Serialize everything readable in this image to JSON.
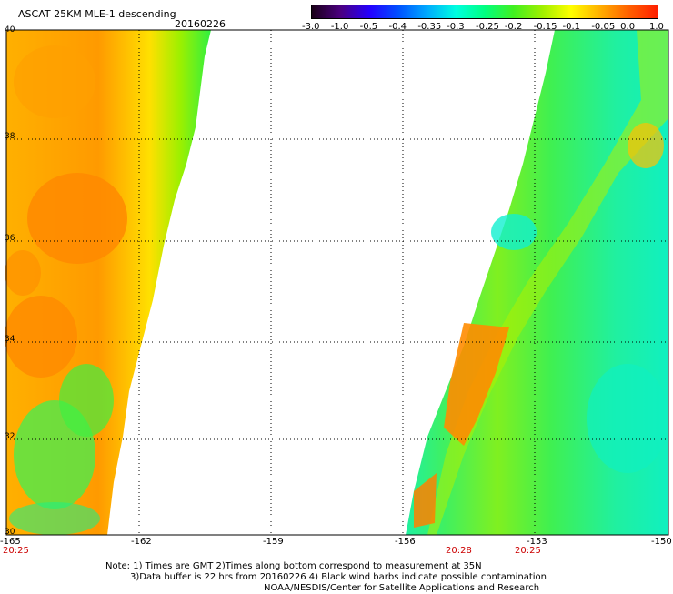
{
  "title": {
    "product": "ASCAT 25KM MLE-1 descending",
    "date": "20160226"
  },
  "colorbar": {
    "labels": [
      "-3.0",
      "-1.0",
      "-0.5",
      "-0.4",
      "-0.35",
      "-0.3",
      "-0.25",
      "-0.2",
      "-0.15",
      "-0.1",
      "-0.05",
      "0.0",
      "1.0"
    ],
    "colors": [
      "#1a0018",
      "#4b0080",
      "#2400ff",
      "#0050ff",
      "#00aaff",
      "#00ffe0",
      "#00ff80",
      "#40f020",
      "#a0f000",
      "#ffff00",
      "#ffb000",
      "#ff6000",
      "#ff2000"
    ]
  },
  "map": {
    "y_labels": [
      "40",
      "38",
      "36",
      "34",
      "32",
      "30"
    ],
    "x_labels": [
      "-165",
      "-162",
      "-159",
      "-156",
      "-153",
      "-150"
    ],
    "time_labels": [
      {
        "text": "20:25",
        "anchor_lon": "-165"
      },
      {
        "text": "20:28",
        "anchor_lon": "-155"
      },
      {
        "text": "20:25",
        "anchor_lon": "-153"
      }
    ]
  },
  "notes": [
    "Note: 1) Times are GMT 2)Times along bottom correspond to measurement at 35N",
    "3)Data buffer is 22 hrs from 20160226 4) Black wind barbs indicate possible contamination",
    "NOAA/NESDIS/Center for Satellite Applications and Research"
  ]
}
